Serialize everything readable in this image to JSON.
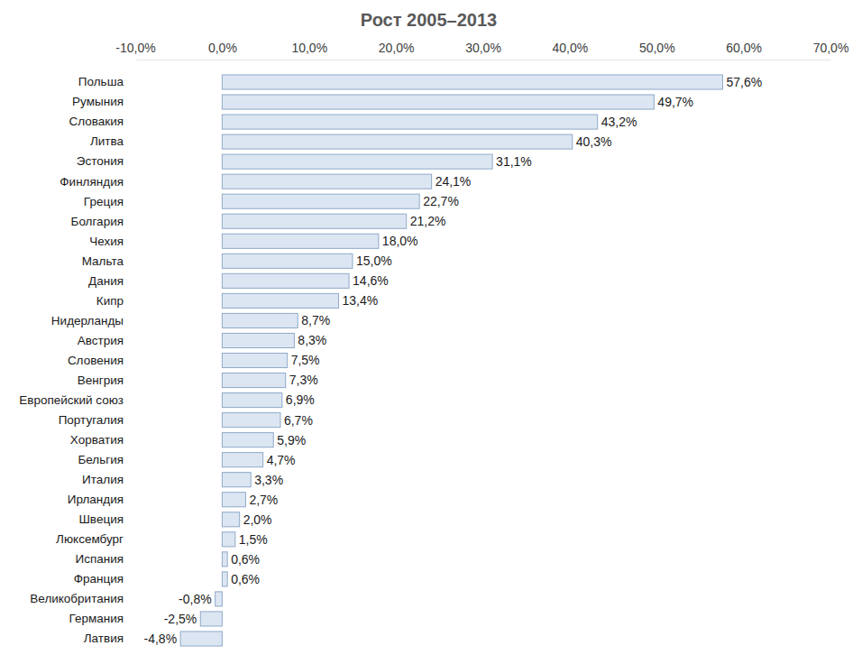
{
  "chart_data": {
    "type": "bar",
    "orientation": "horizontal",
    "title": "Рост 2005–2013",
    "categories": [
      "Польша",
      "Румыния",
      "Словакия",
      "Литва",
      "Эстония",
      "Финляндия",
      "Греция",
      "Болгария",
      "Чехия",
      "Мальта",
      "Дания",
      "Кипр",
      "Нидерланды",
      "Австрия",
      "Словения",
      "Венгрия",
      "Европейский союз",
      "Португалия",
      "Хорватия",
      "Бельгия",
      "Италия",
      "Ирландия",
      "Швеция",
      "Люксембург",
      "Испания",
      "Франция",
      "Великобритания",
      "Германия",
      "Латвия"
    ],
    "values": [
      57.6,
      49.7,
      43.2,
      40.3,
      31.1,
      24.1,
      22.7,
      21.2,
      18.0,
      15.0,
      14.6,
      13.4,
      8.7,
      8.3,
      7.5,
      7.3,
      6.9,
      6.7,
      5.9,
      4.7,
      3.3,
      2.7,
      2.0,
      1.5,
      0.6,
      0.6,
      -0.8,
      -2.5,
      -4.8
    ],
    "value_labels": [
      "57,6%",
      "49,7%",
      "43,2%",
      "40,3%",
      "31,1%",
      "24,1%",
      "22,7%",
      "21,2%",
      "18,0%",
      "15,0%",
      "14,6%",
      "13,4%",
      "8,7%",
      "8,3%",
      "7,5%",
      "7,3%",
      "6,9%",
      "6,7%",
      "5,9%",
      "4,7%",
      "3,3%",
      "2,7%",
      "2,0%",
      "1,5%",
      "0,6%",
      "0,6%",
      "-0,8%",
      "-2,5%",
      "-4,8%"
    ],
    "data_labels": true,
    "color": "#dce6f2",
    "grid": false,
    "xlim": [
      -10,
      70
    ],
    "xticks": [
      {
        "value": -10,
        "label": "-10,0%"
      },
      {
        "value": 0,
        "label": "0,0%"
      },
      {
        "value": 10,
        "label": "10,0%"
      },
      {
        "value": 20,
        "label": "20,0%"
      },
      {
        "value": 30,
        "label": "30,0%"
      },
      {
        "value": 40,
        "label": "40,0%"
      },
      {
        "value": 50,
        "label": "50,0%"
      },
      {
        "value": 60,
        "label": "60,0%"
      },
      {
        "value": 70,
        "label": "70,0%"
      }
    ]
  }
}
